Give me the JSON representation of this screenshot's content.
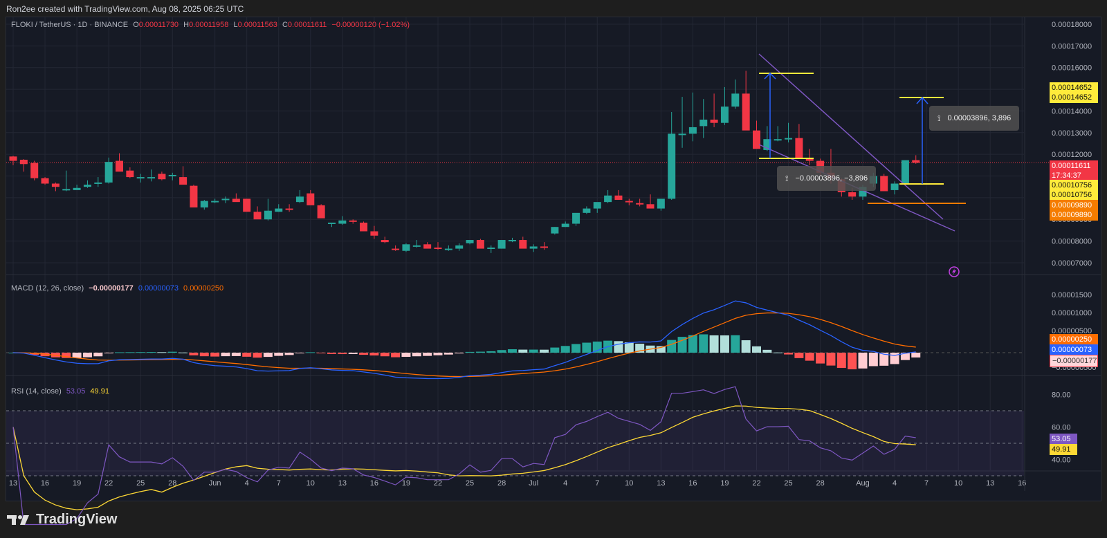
{
  "credit": "Ron2ee created with TradingView.com, Aug 08, 2025 06:25 UTC",
  "header": {
    "symbol": "FLOKI / TetherUS · 1D · BINANCE",
    "o_label": "O",
    "o_value": "0.00011730",
    "h_label": "H",
    "h_value": "0.00011958",
    "l_label": "L",
    "l_value": "0.00011563",
    "c_label": "C",
    "c_value": "0.00011611",
    "change": "−0.00000120 (−1.02%)"
  },
  "price_axis": [
    "0.00018000",
    "0.00017000",
    "0.00016000",
    "0.00015000",
    "0.00014000",
    "0.00013000",
    "0.00012000",
    "0.00011000",
    "0.00010000",
    "0.00009000",
    "0.00008000",
    "0.00007000"
  ],
  "price_tags": {
    "target_top": "0.00014652",
    "target_top2": "0.00014652",
    "last_price": "0.00011611",
    "countdown": "17:34:37",
    "breakout_a": "0.00010756",
    "breakout_b": "0.00010756",
    "support_a": "0.00009890",
    "support_b": "0.00009890"
  },
  "measures": {
    "down": "−0.00003896, −3,896",
    "up": "0.00003896, 3,896"
  },
  "macd": {
    "title": "MACD (12, 26, close)",
    "hist": "−0.00000177",
    "macd": "0.00000073",
    "signal": "0.00000250",
    "axis": [
      "0.00001500",
      "0.00001000",
      "0.00000500",
      "−0.00000500"
    ],
    "tag_signal": "0.00000250",
    "tag_macd": "0.00000073",
    "tag_hist": "−0.00000177"
  },
  "rsi": {
    "title": "RSI (14, close)",
    "rsi": "53.05",
    "ma": "49.91",
    "axis": [
      "80.00",
      "60.00",
      "40.00"
    ],
    "tag_rsi": "53.05",
    "tag_ma": "49.91"
  },
  "time_axis": [
    "13",
    "16",
    "19",
    "22",
    "25",
    "28",
    "Jun",
    "4",
    "7",
    "10",
    "13",
    "16",
    "19",
    "22",
    "25",
    "28",
    "Jul",
    "4",
    "7",
    "10",
    "13",
    "16",
    "19",
    "22",
    "25",
    "28",
    "Aug",
    "4",
    "7",
    "10",
    "13",
    "16"
  ],
  "footer": {
    "brand": "TradingView"
  },
  "colors": {
    "up": "#26a69a",
    "down": "#f23645",
    "bg": "#161a25",
    "wedge": "#7e57c2",
    "arrow": "#2962ff",
    "target": "#ffeb3b",
    "support": "#f57c00",
    "macd": "#2962ff",
    "signal": "#ff6d00",
    "rsi": "#7e57c2",
    "rsi_ma": "#fdd835"
  },
  "chart_data": {
    "type": "candlestick",
    "title": "FLOKI / TetherUS · 1D · BINANCE",
    "price_unit": "USDT (values ×1e-8)",
    "dates_start": "2025-05-13",
    "dates_end": "2025-08-08",
    "ohlc": [
      [
        11900,
        11930,
        11500,
        11700
      ],
      [
        11750,
        11780,
        11200,
        11550
      ],
      [
        11600,
        11700,
        10800,
        10900
      ],
      [
        10900,
        10950,
        10600,
        10650
      ],
      [
        10650,
        10700,
        10300,
        10500
      ],
      [
        10350,
        11250,
        10300,
        10400
      ],
      [
        10350,
        10600,
        10400,
        10450
      ],
      [
        10500,
        10800,
        10450,
        10600
      ],
      [
        10650,
        10950,
        10500,
        10700
      ],
      [
        10700,
        11850,
        10650,
        11650
      ],
      [
        11700,
        12050,
        11250,
        11200
      ],
      [
        11250,
        11400,
        10900,
        10950
      ],
      [
        10900,
        11100,
        10700,
        10950
      ],
      [
        10950,
        11300,
        10750,
        10950
      ],
      [
        11100,
        11200,
        10800,
        10850
      ],
      [
        11000,
        11150,
        10800,
        11050
      ],
      [
        10950,
        11450,
        10850,
        10600
      ],
      [
        10550,
        10600,
        10150,
        9550
      ],
      [
        9550,
        9900,
        9450,
        9850
      ],
      [
        9800,
        9950,
        9750,
        9850
      ],
      [
        9950,
        10050,
        9750,
        9950
      ],
      [
        9950,
        10200,
        9950,
        9800
      ],
      [
        9950,
        9950,
        9450,
        9350
      ],
      [
        9350,
        9600,
        9300,
        9000
      ],
      [
        9000,
        9950,
        8950,
        9400
      ],
      [
        9350,
        9700,
        9350,
        9500
      ],
      [
        9500,
        9700,
        9350,
        9450
      ],
      [
        9800,
        10350,
        9750,
        10050
      ],
      [
        10200,
        10350,
        9950,
        9650
      ],
      [
        9650,
        9700,
        9300,
        9050
      ],
      [
        8800,
        8850,
        8650,
        8850
      ],
      [
        8800,
        9150,
        8750,
        8950
      ],
      [
        8950,
        9000,
        8800,
        8900
      ],
      [
        8850,
        8900,
        8700,
        8450
      ],
      [
        8450,
        8700,
        8100,
        8250
      ],
      [
        8050,
        8200,
        7900,
        7950
      ],
      [
        7650,
        7800,
        7550,
        7600
      ],
      [
        7550,
        7900,
        7500,
        7850
      ],
      [
        7800,
        8050,
        7700,
        7800
      ],
      [
        7850,
        7950,
        7750,
        7650
      ],
      [
        7700,
        7950,
        7600,
        7650
      ],
      [
        7600,
        7800,
        7550,
        7650
      ],
      [
        7650,
        7900,
        7550,
        7800
      ],
      [
        7900,
        8050,
        7850,
        8050
      ],
      [
        8050,
        8100,
        7750,
        7650
      ],
      [
        7650,
        7800,
        7450,
        7700
      ],
      [
        7650,
        7950,
        7650,
        8050
      ],
      [
        8050,
        8150,
        7950,
        8050
      ],
      [
        8050,
        8200,
        7800,
        7650
      ],
      [
        7650,
        7850,
        7500,
        7750
      ],
      [
        7750,
        7950,
        7600,
        7700
      ],
      [
        8350,
        8650,
        8300,
        8650
      ],
      [
        8650,
        8900,
        8650,
        8800
      ],
      [
        8800,
        9100,
        8700,
        9300
      ],
      [
        9300,
        9600,
        9250,
        9500
      ],
      [
        9500,
        9700,
        9300,
        9800
      ],
      [
        9800,
        10350,
        9750,
        10100
      ],
      [
        10100,
        10350,
        9950,
        9900
      ],
      [
        9850,
        9950,
        9650,
        9800
      ],
      [
        9750,
        9950,
        9600,
        9700
      ],
      [
        9700,
        10150,
        9550,
        9500
      ],
      [
        9500,
        9950,
        9400,
        9950
      ],
      [
        9950,
        13950,
        9900,
        12950
      ],
      [
        12950,
        14650,
        12300,
        12950
      ],
      [
        12950,
        14850,
        12600,
        13250
      ],
      [
        13300,
        14550,
        12750,
        13600
      ],
      [
        13600,
        14800,
        13250,
        13450
      ],
      [
        13450,
        15100,
        13350,
        14200
      ],
      [
        14200,
        15450,
        14100,
        14800
      ],
      [
        14800,
        15850,
        13750,
        13100
      ],
      [
        13100,
        13550,
        12750,
        12250
      ],
      [
        12200,
        13300,
        12150,
        12700
      ],
      [
        12700,
        13300,
        12600,
        12700
      ],
      [
        12700,
        13450,
        12550,
        12750
      ],
      [
        12750,
        13400,
        12350,
        11800
      ],
      [
        11800,
        12250,
        11500,
        11700
      ],
      [
        11700,
        11800,
        11000,
        11150
      ],
      [
        11150,
        12250,
        10650,
        10900
      ],
      [
        10850,
        10900,
        10050,
        10250
      ],
      [
        10250,
        10450,
        9900,
        10050
      ],
      [
        10050,
        10600,
        9900,
        10500
      ],
      [
        10650,
        11150,
        10500,
        11000
      ],
      [
        11000,
        11100,
        10350,
        10300
      ],
      [
        10350,
        10750,
        10150,
        10650
      ],
      [
        10650,
        11700,
        10600,
        11730
      ],
      [
        11730,
        11958,
        11563,
        11611
      ]
    ],
    "annotations": {
      "falling_wedge": "two converging purple trendlines from ~Jul 21 to ~Aug 7",
      "measured_move": 3.896e-05,
      "breakout_level": 0.00010756,
      "target": 0.00014652,
      "support": 9.89e-05
    },
    "ylim": [
      6.5e-06,
      1.85e-05
    ],
    "macd": {
      "macd_last": 7.3e-07,
      "signal_last": 2.5e-06,
      "hist_last": -1.77e-06
    },
    "rsi": {
      "rsi_last": 53.05,
      "ma_last": 49.91,
      "bands": [
        30,
        50,
        70
      ]
    }
  }
}
